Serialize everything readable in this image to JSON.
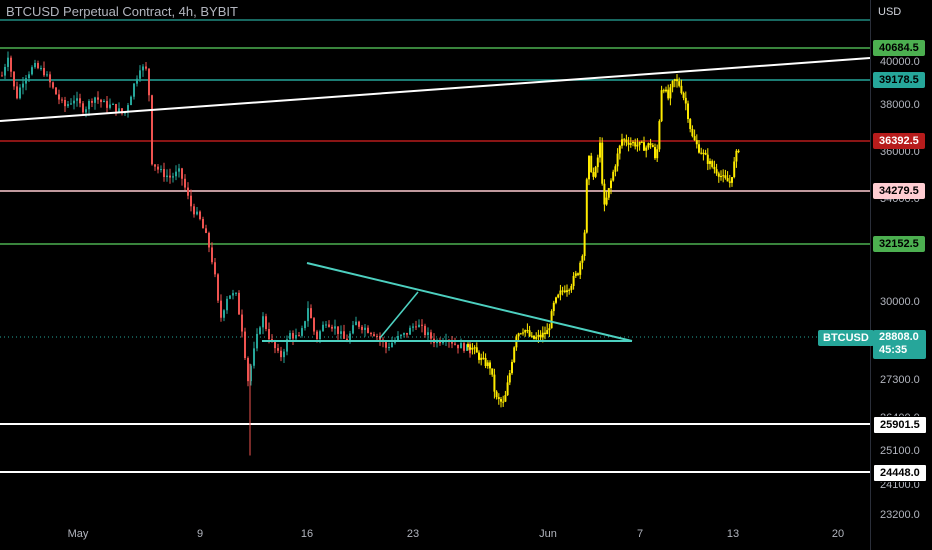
{
  "chart": {
    "title": "BTCUSD Perpetual Contract, 4h, BYBIT",
    "currency": "USD"
  },
  "colors": {
    "background": "#000000",
    "up_candle": "#26a69a",
    "down_candle": "#ef5350",
    "highlight_candle": "#ffeb00",
    "trendline": "#ffffff",
    "triangle": "#4dd0c0",
    "grid_teal": "#26a69a",
    "grid_green": "#4caf50",
    "grid_red": "#d32f2f",
    "grid_pink": "#ffcdd2"
  },
  "y_axis": {
    "ticks": [
      "40000.0",
      "38000.0",
      "36000.0",
      "34000.0",
      "30000.0",
      "27300.0",
      "26400.0",
      "25100.0",
      "24100.0",
      "23200.0"
    ]
  },
  "x_axis": {
    "ticks": [
      "May",
      "9",
      "16",
      "23",
      "Jun",
      "7",
      "13",
      "20"
    ]
  },
  "levels": [
    {
      "label": "40684.5",
      "color": "#4caf50",
      "text_color": "#000000"
    },
    {
      "label": "39178.5",
      "color": "#26a69a",
      "text_color": "#000000"
    },
    {
      "label": "36392.5",
      "color": "#b71c1c",
      "text_color": "#ffffff"
    },
    {
      "label": "34279.5",
      "color": "#ffcdd2",
      "text_color": "#000000"
    },
    {
      "label": "32152.5",
      "color": "#4caf50",
      "text_color": "#000000"
    },
    {
      "label": "25901.5",
      "color": "#ffffff",
      "text_color": "#000000"
    },
    {
      "label": "24448.0",
      "color": "#ffffff",
      "text_color": "#000000"
    }
  ],
  "current_price": {
    "symbol": "BTCUSD",
    "price": "28808.0",
    "countdown": "45:35"
  }
}
